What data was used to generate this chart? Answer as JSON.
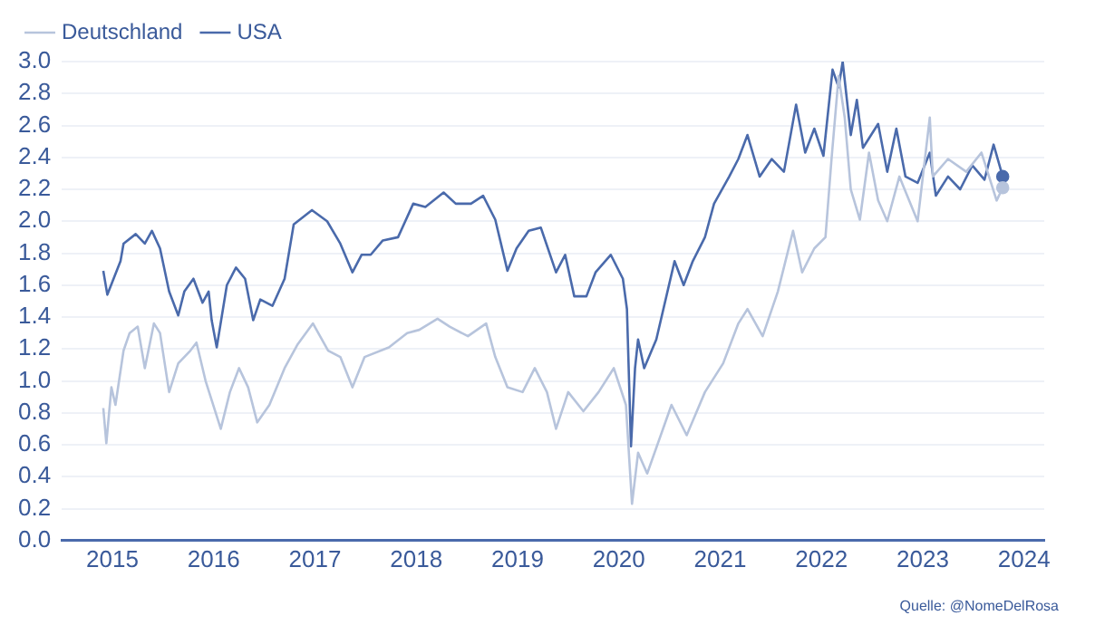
{
  "chart_data": {
    "type": "line",
    "legend": "top left",
    "grid": "y",
    "xlim": [
      2014.5,
      2024.2
    ],
    "xticks": [
      2015,
      2016,
      2017,
      2018,
      2019,
      2020,
      2021,
      2022,
      2023,
      2024
    ],
    "ylim": [
      0,
      3.0
    ],
    "yticks": [
      {
        "value": 0,
        "label": "0.0"
      },
      {
        "value": 0.2,
        "label": "0.2"
      },
      {
        "value": 0.4,
        "label": "0.4"
      },
      {
        "value": 0.6,
        "label": "0.6"
      },
      {
        "value": 0.8,
        "label": "0.8"
      },
      {
        "value": 1.0,
        "label": "1.0"
      },
      {
        "value": 1.2,
        "label": "1.2"
      },
      {
        "value": 1.4,
        "label": "1.4"
      },
      {
        "value": 1.6,
        "label": "1.6"
      },
      {
        "value": 1.8,
        "label": "1.8"
      },
      {
        "value": 2.0,
        "label": "2.0"
      },
      {
        "value": 2.2,
        "label": "2.2"
      },
      {
        "value": 2.4,
        "label": "2.4"
      },
      {
        "value": 2.6,
        "label": "2.6"
      },
      {
        "value": 2.8,
        "label": "2.8"
      },
      {
        "value": 3.0,
        "label": "3.0"
      }
    ],
    "annotations": [
      "Quelle: @NomeDelRosa"
    ],
    "series": [
      {
        "name": "Deutschland",
        "color": "#b7c4dc",
        "x": [
          2014.91,
          2014.94,
          2014.99,
          2015.03,
          2015.11,
          2015.17,
          2015.25,
          2015.32,
          2015.41,
          2015.47,
          2015.56,
          2015.65,
          2015.77,
          2015.83,
          2015.92,
          2016.07,
          2016.16,
          2016.25,
          2016.34,
          2016.43,
          2016.55,
          2016.7,
          2016.83,
          2016.98,
          2017.13,
          2017.25,
          2017.37,
          2017.49,
          2017.73,
          2017.91,
          2018.03,
          2018.21,
          2018.33,
          2018.51,
          2018.69,
          2018.78,
          2018.9,
          2019.05,
          2019.17,
          2019.29,
          2019.38,
          2019.5,
          2019.65,
          2019.8,
          2019.95,
          2020.07,
          2020.13,
          2020.19,
          2020.28,
          2020.52,
          2020.67,
          2020.85,
          2021.03,
          2021.18,
          2021.27,
          2021.42,
          2021.57,
          2021.72,
          2021.81,
          2021.93,
          2022.04,
          2022.1,
          2022.17,
          2022.23,
          2022.29,
          2022.38,
          2022.47,
          2022.56,
          2022.65,
          2022.77,
          2022.95,
          2023.07,
          2023.1,
          2023.25,
          2023.43,
          2023.58,
          2023.73,
          2023.79
        ],
        "values": [
          0.83,
          0.61,
          0.96,
          0.85,
          1.19,
          1.3,
          1.34,
          1.08,
          1.36,
          1.3,
          0.93,
          1.11,
          1.19,
          1.24,
          1.0,
          0.7,
          0.93,
          1.08,
          0.96,
          0.74,
          0.85,
          1.08,
          1.23,
          1.36,
          1.19,
          1.15,
          0.96,
          1.15,
          1.21,
          1.3,
          1.32,
          1.39,
          1.34,
          1.28,
          1.36,
          1.15,
          0.96,
          0.93,
          1.08,
          0.93,
          0.7,
          0.93,
          0.81,
          0.93,
          1.08,
          0.85,
          0.23,
          0.55,
          0.42,
          0.85,
          0.66,
          0.93,
          1.11,
          1.36,
          1.45,
          1.28,
          1.56,
          1.94,
          1.68,
          1.83,
          1.9,
          2.39,
          2.91,
          2.65,
          2.2,
          2.01,
          2.43,
          2.13,
          2.0,
          2.28,
          2.0,
          2.65,
          2.28,
          2.39,
          2.31,
          2.43,
          2.13,
          2.21
        ]
      },
      {
        "name": "USA",
        "color": "#4a6aab",
        "x": [
          2014.91,
          2014.95,
          2015.08,
          2015.11,
          2015.23,
          2015.32,
          2015.39,
          2015.47,
          2015.56,
          2015.65,
          2015.71,
          2015.8,
          2015.89,
          2015.95,
          2015.98,
          2016.03,
          2016.13,
          2016.22,
          2016.31,
          2016.39,
          2016.46,
          2016.58,
          2016.7,
          2016.79,
          2016.97,
          2017.12,
          2017.25,
          2017.37,
          2017.46,
          2017.55,
          2017.67,
          2017.82,
          2017.97,
          2018.09,
          2018.27,
          2018.39,
          2018.54,
          2018.66,
          2018.78,
          2018.9,
          2018.99,
          2019.11,
          2019.23,
          2019.38,
          2019.47,
          2019.56,
          2019.68,
          2019.77,
          2019.92,
          2020.04,
          2020.08,
          2020.12,
          2020.16,
          2020.19,
          2020.25,
          2020.37,
          2020.55,
          2020.64,
          2020.73,
          2020.85,
          2020.94,
          2021.09,
          2021.18,
          2021.27,
          2021.39,
          2021.51,
          2021.63,
          2021.75,
          2021.84,
          2021.93,
          2022.02,
          2022.11,
          2022.17,
          2022.21,
          2022.29,
          2022.35,
          2022.41,
          2022.56,
          2022.65,
          2022.74,
          2022.83,
          2022.95,
          2023.07,
          2023.13,
          2023.25,
          2023.37,
          2023.49,
          2023.61,
          2023.7,
          2023.79
        ],
        "values": [
          1.69,
          1.54,
          1.75,
          1.86,
          1.92,
          1.86,
          1.94,
          1.83,
          1.56,
          1.41,
          1.56,
          1.64,
          1.49,
          1.56,
          1.38,
          1.21,
          1.6,
          1.71,
          1.64,
          1.38,
          1.51,
          1.47,
          1.64,
          1.98,
          2.07,
          2.0,
          1.86,
          1.68,
          1.79,
          1.79,
          1.88,
          1.9,
          2.11,
          2.09,
          2.18,
          2.11,
          2.11,
          2.16,
          2.01,
          1.69,
          1.83,
          1.94,
          1.96,
          1.68,
          1.79,
          1.53,
          1.53,
          1.68,
          1.79,
          1.64,
          1.45,
          0.59,
          1.08,
          1.26,
          1.08,
          1.26,
          1.75,
          1.6,
          1.75,
          1.9,
          2.11,
          2.28,
          2.39,
          2.54,
          2.28,
          2.39,
          2.31,
          2.73,
          2.43,
          2.58,
          2.41,
          2.95,
          2.84,
          3.0,
          2.54,
          2.76,
          2.46,
          2.61,
          2.31,
          2.58,
          2.28,
          2.24,
          2.43,
          2.16,
          2.28,
          2.2,
          2.35,
          2.26,
          2.48,
          2.28
        ]
      }
    ]
  }
}
